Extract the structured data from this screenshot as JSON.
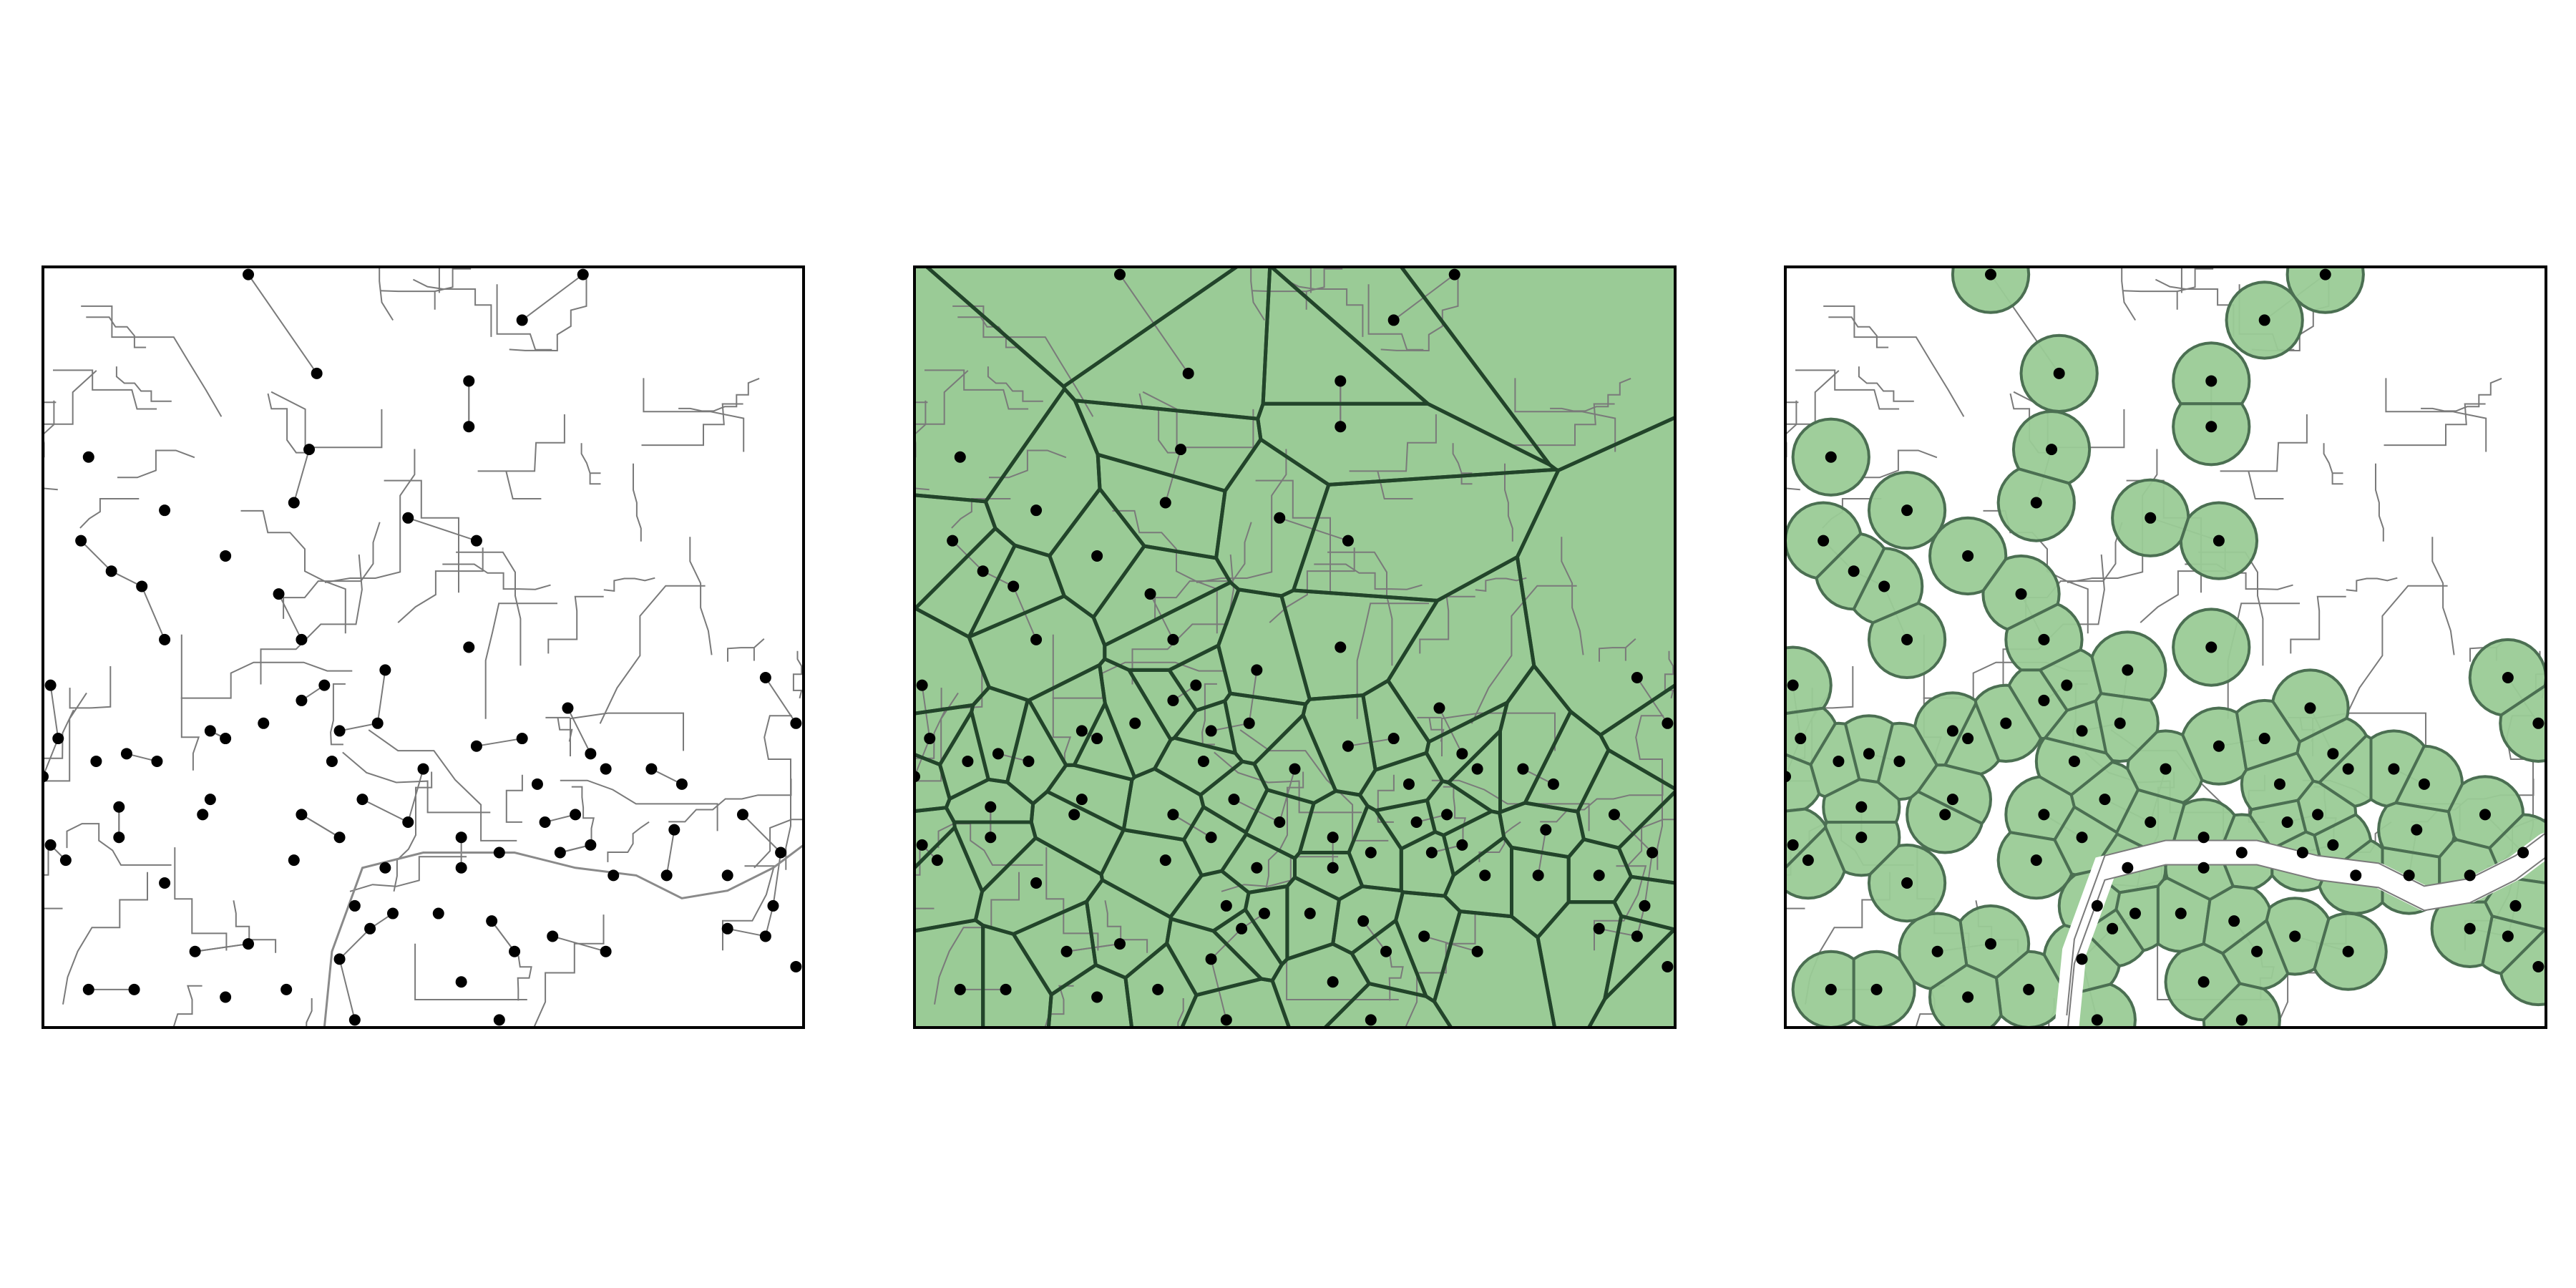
{
  "figure": {
    "panels": [
      {
        "id": "panel-points",
        "fill": "none",
        "show_voronoi": false,
        "show_buffers": false
      },
      {
        "id": "panel-voronoi",
        "fill": "voronoi",
        "show_voronoi": true,
        "show_buffers": false
      },
      {
        "id": "panel-buffers",
        "fill": "buffers",
        "show_voronoi": false,
        "show_buffers": true
      }
    ]
  },
  "colors": {
    "area_fill": "#9acb96",
    "edge": "#22442a",
    "point": "#000000",
    "basemap_line": "#7a7a7a",
    "background": "#ffffff"
  },
  "map_data": {
    "points": [
      [
        0.27,
        0.01
      ],
      [
        0.63,
        0.07
      ],
      [
        0.71,
        0.01
      ],
      [
        0.36,
        0.14
      ],
      [
        0.56,
        0.15
      ],
      [
        0.35,
        0.24
      ],
      [
        0.56,
        0.21
      ],
      [
        0.06,
        0.25
      ],
      [
        0.33,
        0.31
      ],
      [
        0.16,
        0.32
      ],
      [
        0.48,
        0.33
      ],
      [
        0.57,
        0.36
      ],
      [
        0.05,
        0.36
      ],
      [
        0.24,
        0.38
      ],
      [
        0.09,
        0.4
      ],
      [
        0.31,
        0.43
      ],
      [
        0.16,
        0.49
      ],
      [
        0.13,
        0.42
      ],
      [
        0.34,
        0.49
      ],
      [
        0.56,
        0.5
      ],
      [
        0.01,
        0.55
      ],
      [
        0.37,
        0.55
      ],
      [
        0.45,
        0.53
      ],
      [
        0.02,
        0.62
      ],
      [
        0.34,
        0.57
      ],
      [
        0.39,
        0.61
      ],
      [
        0.24,
        0.62
      ],
      [
        0.29,
        0.6
      ],
      [
        0.22,
        0.61
      ],
      [
        0.15,
        0.65
      ],
      [
        0.11,
        0.64
      ],
      [
        0.07,
        0.65
      ],
      [
        0.44,
        0.6
      ],
      [
        0.57,
        0.63
      ],
      [
        0.69,
        0.58
      ],
      [
        0.74,
        0.66
      ],
      [
        0.95,
        0.54
      ],
      [
        0.99,
        0.6
      ],
      [
        0.0,
        0.67
      ],
      [
        0.38,
        0.65
      ],
      [
        0.5,
        0.66
      ],
      [
        0.65,
        0.68
      ],
      [
        0.63,
        0.62
      ],
      [
        0.72,
        0.64
      ],
      [
        0.8,
        0.66
      ],
      [
        0.84,
        0.68
      ],
      [
        0.1,
        0.71
      ],
      [
        0.22,
        0.7
      ],
      [
        0.34,
        0.72
      ],
      [
        0.42,
        0.7
      ],
      [
        0.48,
        0.73
      ],
      [
        0.55,
        0.75
      ],
      [
        0.66,
        0.73
      ],
      [
        0.7,
        0.72
      ],
      [
        0.72,
        0.76
      ],
      [
        0.83,
        0.74
      ],
      [
        0.92,
        0.72
      ],
      [
        0.21,
        0.72
      ],
      [
        0.1,
        0.75
      ],
      [
        0.01,
        0.76
      ],
      [
        0.03,
        0.78
      ],
      [
        0.33,
        0.78
      ],
      [
        0.39,
        0.75
      ],
      [
        0.45,
        0.79
      ],
      [
        0.55,
        0.79
      ],
      [
        0.6,
        0.77
      ],
      [
        0.68,
        0.77
      ],
      [
        0.75,
        0.8
      ],
      [
        0.82,
        0.8
      ],
      [
        0.9,
        0.8
      ],
      [
        0.97,
        0.77
      ],
      [
        0.16,
        0.81
      ],
      [
        0.27,
        0.89
      ],
      [
        0.41,
        0.84
      ],
      [
        0.46,
        0.85
      ],
      [
        0.52,
        0.85
      ],
      [
        0.59,
        0.86
      ],
      [
        0.67,
        0.88
      ],
      [
        0.74,
        0.9
      ],
      [
        0.96,
        0.84
      ],
      [
        0.95,
        0.88
      ],
      [
        0.99,
        0.92
      ],
      [
        0.2,
        0.9
      ],
      [
        0.32,
        0.95
      ],
      [
        0.39,
        0.91
      ],
      [
        0.55,
        0.94
      ],
      [
        0.62,
        0.9
      ],
      [
        0.06,
        0.95
      ],
      [
        0.12,
        0.95
      ],
      [
        0.24,
        0.96
      ],
      [
        0.41,
        0.99
      ],
      [
        0.6,
        0.99
      ],
      [
        0.9,
        0.87
      ],
      [
        0.43,
        0.87
      ]
    ],
    "river": [
      [
        0.37,
        1.0
      ],
      [
        0.38,
        0.9
      ],
      [
        0.42,
        0.79
      ],
      [
        0.5,
        0.77
      ],
      [
        0.62,
        0.77
      ],
      [
        0.7,
        0.79
      ],
      [
        0.78,
        0.8
      ],
      [
        0.84,
        0.83
      ],
      [
        0.9,
        0.82
      ],
      [
        0.96,
        0.79
      ],
      [
        1.0,
        0.76
      ]
    ]
  }
}
